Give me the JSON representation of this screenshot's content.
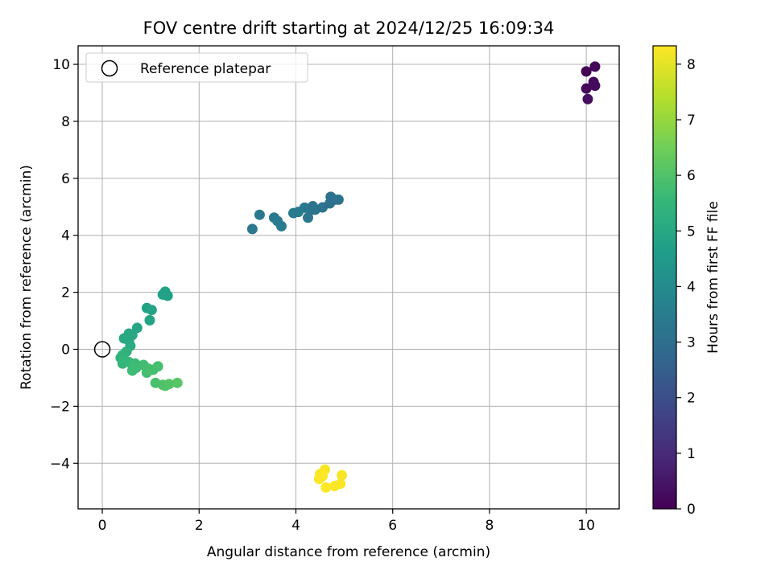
{
  "chart_data": {
    "type": "scatter",
    "title": "FOV centre drift starting at 2024/12/25 16:09:34",
    "xlabel": "Angular distance from reference (arcmin)",
    "ylabel": "Rotation from reference (arcmin)",
    "xlim": [
      -0.5,
      10.68
    ],
    "ylim": [
      -5.6,
      10.65
    ],
    "xticks": [
      0,
      2,
      4,
      6,
      8,
      10
    ],
    "yticks": [
      -4,
      -2,
      0,
      2,
      4,
      6,
      8,
      10
    ],
    "grid": true,
    "legend": {
      "placement": "upper-left",
      "entries": [
        {
          "label": "Reference platepar",
          "marker": "open-circle"
        }
      ]
    },
    "reference_point": {
      "x": 0,
      "y": 0
    },
    "colorbar": {
      "label": "Hours from first FF file",
      "min": 0,
      "max": 8.33,
      "ticks": [
        0,
        1,
        2,
        3,
        4,
        5,
        6,
        7,
        8
      ],
      "colormap": "viridis",
      "stops": [
        "#440154",
        "#482878",
        "#3e4989",
        "#31688e",
        "#26828e",
        "#1f9e89",
        "#35b779",
        "#6ece58",
        "#b5de2b",
        "#fde725"
      ]
    },
    "points": [
      {
        "x": 10.0,
        "y": 9.75,
        "t": 0.0
      },
      {
        "x": 10.18,
        "y": 9.92,
        "t": 0.1
      },
      {
        "x": 10.0,
        "y": 9.15,
        "t": 0.15
      },
      {
        "x": 10.15,
        "y": 9.38,
        "t": 0.2
      },
      {
        "x": 10.18,
        "y": 9.25,
        "t": 0.25
      },
      {
        "x": 10.03,
        "y": 8.78,
        "t": 0.3
      },
      {
        "x": 3.1,
        "y": 4.22,
        "t": 3.3
      },
      {
        "x": 3.25,
        "y": 4.72,
        "t": 3.35
      },
      {
        "x": 3.55,
        "y": 4.62,
        "t": 3.4
      },
      {
        "x": 3.62,
        "y": 4.5,
        "t": 3.45
      },
      {
        "x": 3.7,
        "y": 4.32,
        "t": 3.5
      },
      {
        "x": 3.95,
        "y": 4.78,
        "t": 3.45
      },
      {
        "x": 4.05,
        "y": 4.82,
        "t": 3.4
      },
      {
        "x": 4.18,
        "y": 4.97,
        "t": 3.35
      },
      {
        "x": 4.25,
        "y": 4.62,
        "t": 3.3
      },
      {
        "x": 4.3,
        "y": 4.88,
        "t": 3.25
      },
      {
        "x": 4.35,
        "y": 5.02,
        "t": 3.2
      },
      {
        "x": 4.4,
        "y": 4.9,
        "t": 3.2
      },
      {
        "x": 4.55,
        "y": 4.98,
        "t": 3.15
      },
      {
        "x": 4.7,
        "y": 5.12,
        "t": 3.1
      },
      {
        "x": 4.72,
        "y": 5.35,
        "t": 3.05
      },
      {
        "x": 4.8,
        "y": 5.25,
        "t": 3.1
      },
      {
        "x": 4.88,
        "y": 5.25,
        "t": 3.15
      },
      {
        "x": 1.3,
        "y": 2.02,
        "t": 4.7
      },
      {
        "x": 1.25,
        "y": 1.92,
        "t": 4.75
      },
      {
        "x": 1.35,
        "y": 1.88,
        "t": 4.75
      },
      {
        "x": 0.92,
        "y": 1.45,
        "t": 4.8
      },
      {
        "x": 1.02,
        "y": 1.38,
        "t": 4.85
      },
      {
        "x": 0.98,
        "y": 1.02,
        "t": 4.85
      },
      {
        "x": 0.72,
        "y": 0.75,
        "t": 4.9
      },
      {
        "x": 0.55,
        "y": 0.55,
        "t": 4.95
      },
      {
        "x": 0.62,
        "y": 0.5,
        "t": 5.0
      },
      {
        "x": 0.45,
        "y": 0.38,
        "t": 5.0
      },
      {
        "x": 0.55,
        "y": 0.3,
        "t": 5.05
      },
      {
        "x": 0.58,
        "y": 0.12,
        "t": 5.1
      },
      {
        "x": 0.5,
        "y": -0.08,
        "t": 5.3
      },
      {
        "x": 0.42,
        "y": -0.2,
        "t": 5.35
      },
      {
        "x": 0.38,
        "y": -0.3,
        "t": 5.4
      },
      {
        "x": 0.45,
        "y": -0.35,
        "t": 5.45
      },
      {
        "x": 0.42,
        "y": -0.5,
        "t": 5.5
      },
      {
        "x": 0.55,
        "y": -0.45,
        "t": 5.55
      },
      {
        "x": 0.62,
        "y": -0.55,
        "t": 5.6
      },
      {
        "x": 0.68,
        "y": -0.5,
        "t": 5.65
      },
      {
        "x": 0.7,
        "y": -0.65,
        "t": 5.7
      },
      {
        "x": 0.62,
        "y": -0.75,
        "t": 5.7
      },
      {
        "x": 0.85,
        "y": -0.55,
        "t": 5.75
      },
      {
        "x": 0.95,
        "y": -0.68,
        "t": 5.8
      },
      {
        "x": 0.92,
        "y": -0.82,
        "t": 5.8
      },
      {
        "x": 1.05,
        "y": -0.72,
        "t": 5.85
      },
      {
        "x": 1.15,
        "y": -0.6,
        "t": 5.85
      },
      {
        "x": 1.1,
        "y": -1.18,
        "t": 5.9
      },
      {
        "x": 1.25,
        "y": -1.25,
        "t": 5.95
      },
      {
        "x": 1.3,
        "y": -1.28,
        "t": 6.0
      },
      {
        "x": 1.38,
        "y": -1.22,
        "t": 6.05
      },
      {
        "x": 1.55,
        "y": -1.18,
        "t": 6.1
      },
      {
        "x": 4.6,
        "y": -4.22,
        "t": 8.25
      },
      {
        "x": 4.5,
        "y": -4.38,
        "t": 8.28
      },
      {
        "x": 4.48,
        "y": -4.55,
        "t": 8.3
      },
      {
        "x": 4.55,
        "y": -4.45,
        "t": 8.3
      },
      {
        "x": 4.62,
        "y": -4.85,
        "t": 8.32
      },
      {
        "x": 4.8,
        "y": -4.8,
        "t": 8.3
      },
      {
        "x": 4.92,
        "y": -4.72,
        "t": 8.28
      },
      {
        "x": 4.95,
        "y": -4.42,
        "t": 8.25
      }
    ]
  }
}
